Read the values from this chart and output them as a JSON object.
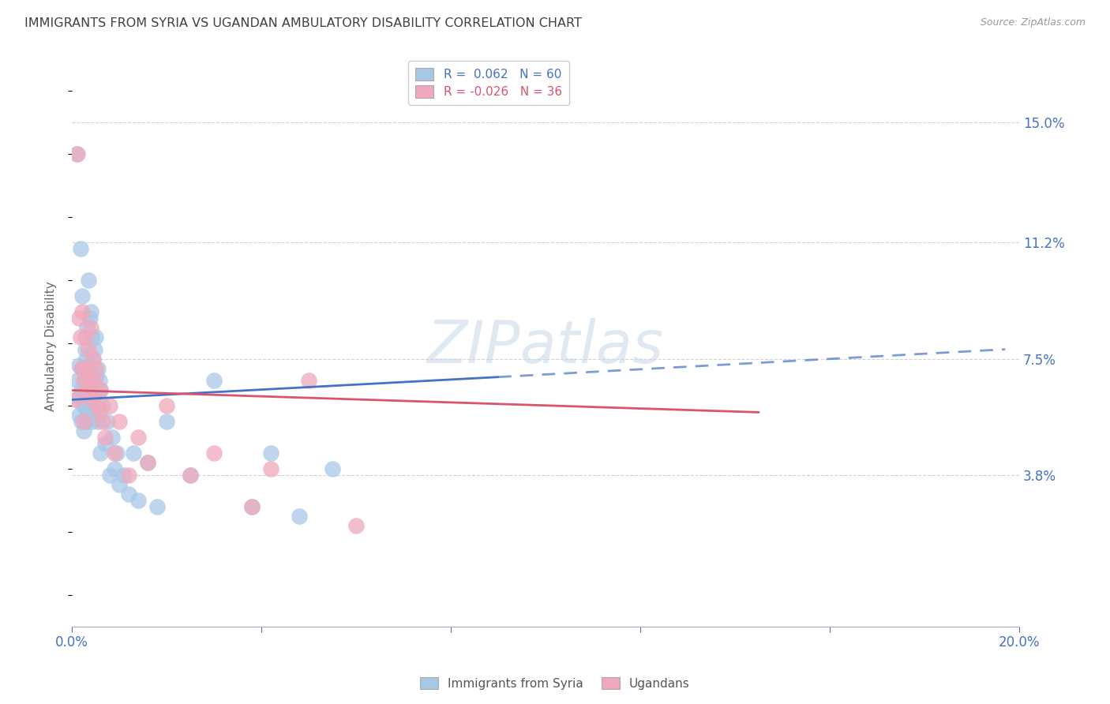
{
  "title": "IMMIGRANTS FROM SYRIA VS UGANDAN AMBULATORY DISABILITY CORRELATION CHART",
  "source": "Source: ZipAtlas.com",
  "ylabel": "Ambulatory Disability",
  "ytick_labels": [
    "15.0%",
    "11.2%",
    "7.5%",
    "3.8%"
  ],
  "ytick_values": [
    0.15,
    0.112,
    0.075,
    0.038
  ],
  "xlim": [
    0.0,
    0.2
  ],
  "ylim": [
    -0.01,
    0.168
  ],
  "legend_1_label": "R =  0.062   N = 60",
  "legend_2_label": "R = -0.026   N = 36",
  "series1_label": "Immigrants from Syria",
  "series2_label": "Ugandans",
  "series1_color": "#a8c8e8",
  "series2_color": "#f0a8bc",
  "series1_line_color": "#4472c4",
  "series2_line_color": "#d9546e",
  "watermark": "ZIPatlas",
  "background_color": "#ffffff",
  "grid_color": "#c8c8c8",
  "title_color": "#404040",
  "axis_label_color": "#4472c4",
  "tick_label_color": "#4472c4",
  "series1_x": [
    0.0008,
    0.001,
    0.0012,
    0.0015,
    0.0015,
    0.0018,
    0.002,
    0.002,
    0.0022,
    0.0022,
    0.0025,
    0.0025,
    0.0025,
    0.0028,
    0.0028,
    0.003,
    0.003,
    0.003,
    0.0032,
    0.0032,
    0.0035,
    0.0035,
    0.0038,
    0.0038,
    0.004,
    0.004,
    0.0042,
    0.0042,
    0.0045,
    0.0045,
    0.0048,
    0.005,
    0.005,
    0.0052,
    0.0055,
    0.0055,
    0.0058,
    0.006,
    0.006,
    0.0065,
    0.007,
    0.0075,
    0.008,
    0.0085,
    0.009,
    0.0095,
    0.01,
    0.011,
    0.012,
    0.013,
    0.014,
    0.016,
    0.018,
    0.02,
    0.025,
    0.03,
    0.038,
    0.042,
    0.048,
    0.055
  ],
  "series1_y": [
    0.062,
    0.14,
    0.068,
    0.073,
    0.057,
    0.11,
    0.065,
    0.055,
    0.095,
    0.072,
    0.068,
    0.06,
    0.052,
    0.078,
    0.062,
    0.075,
    0.068,
    0.055,
    0.085,
    0.058,
    0.1,
    0.072,
    0.088,
    0.062,
    0.09,
    0.065,
    0.082,
    0.055,
    0.075,
    0.058,
    0.078,
    0.082,
    0.065,
    0.07,
    0.072,
    0.055,
    0.068,
    0.065,
    0.045,
    0.06,
    0.048,
    0.055,
    0.038,
    0.05,
    0.04,
    0.045,
    0.035,
    0.038,
    0.032,
    0.045,
    0.03,
    0.042,
    0.028,
    0.055,
    0.038,
    0.068,
    0.028,
    0.045,
    0.025,
    0.04
  ],
  "series2_x": [
    0.0008,
    0.0012,
    0.0015,
    0.0018,
    0.002,
    0.0022,
    0.0025,
    0.0025,
    0.0028,
    0.003,
    0.0032,
    0.0035,
    0.0038,
    0.004,
    0.0042,
    0.0045,
    0.0048,
    0.005,
    0.0055,
    0.0058,
    0.006,
    0.0065,
    0.007,
    0.008,
    0.009,
    0.01,
    0.012,
    0.014,
    0.016,
    0.02,
    0.025,
    0.03,
    0.038,
    0.042,
    0.05,
    0.06
  ],
  "series2_y": [
    0.062,
    0.14,
    0.088,
    0.082,
    0.072,
    0.09,
    0.068,
    0.055,
    0.082,
    0.072,
    0.065,
    0.078,
    0.068,
    0.085,
    0.062,
    0.075,
    0.068,
    0.072,
    0.06,
    0.058,
    0.065,
    0.055,
    0.05,
    0.06,
    0.045,
    0.055,
    0.038,
    0.05,
    0.042,
    0.06,
    0.038,
    0.045,
    0.028,
    0.04,
    0.068,
    0.022
  ],
  "line1_x": [
    0.0,
    0.2
  ],
  "line1_y_start": 0.062,
  "line1_y_end": 0.078,
  "line1_dashed_start": 0.09,
  "line2_x": [
    0.0,
    0.145
  ],
  "line2_y_start": 0.065,
  "line2_y_end": 0.058
}
